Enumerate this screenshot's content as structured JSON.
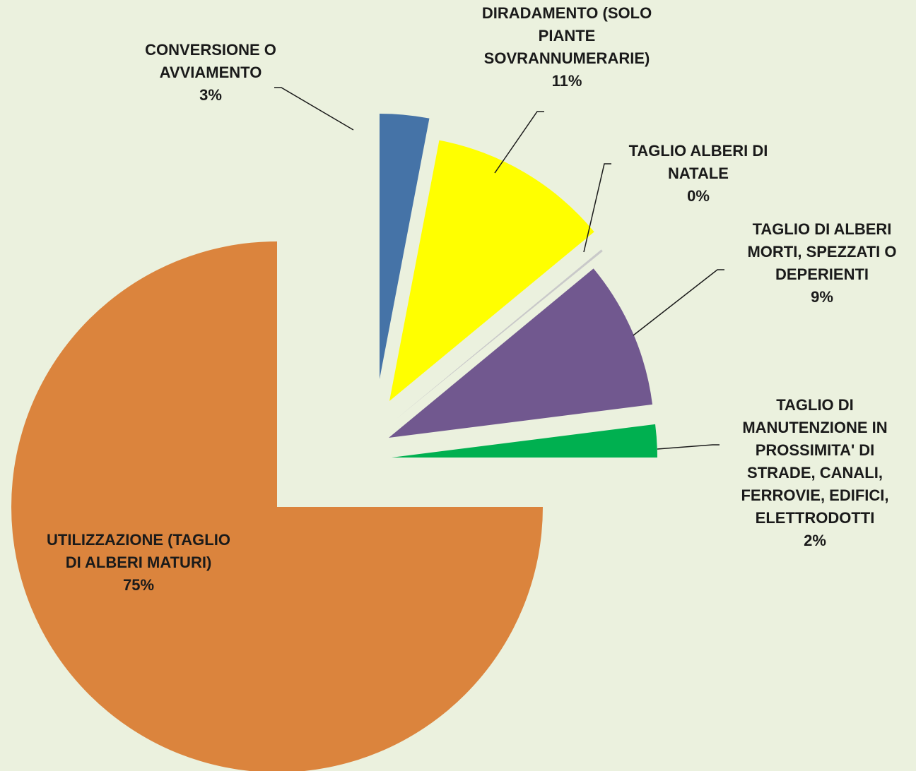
{
  "chart_data": {
    "type": "pie",
    "exploded": true,
    "start_angle_deg": 0,
    "direction": "clockwise",
    "slices": [
      {
        "label": "CONVERSIONE O AVVIAMENTO",
        "value": 3,
        "display": "3%",
        "color": "#4573A7"
      },
      {
        "label": "DIRADAMENTO (SOLO PIANTE SOVRANNUMERARIE)",
        "value": 11,
        "display": "11%",
        "color": "#FFFF00"
      },
      {
        "label": "TAGLIO ALBERI DI NATALE",
        "value": 0,
        "display": "0%",
        "color": "#C9C9C9"
      },
      {
        "label": "TAGLIO DI ALBERI MORTI, SPEZZATI O DEPERIENTI",
        "value": 9,
        "display": "9%",
        "color": "#71588F"
      },
      {
        "label": "TAGLIO DI MANUTENZIONE IN PROSSIMITA' DI STRADE, CANALI, FERROVIE, EDIFICI, ELETTRODOTTI",
        "value": 2,
        "display": "2%",
        "color": "#00B050"
      },
      {
        "label": "UTILIZZAZIONE (TAGLIO DI ALBERI MATURI)",
        "value": 75,
        "display": "75%",
        "color": "#DB843D"
      }
    ]
  }
}
